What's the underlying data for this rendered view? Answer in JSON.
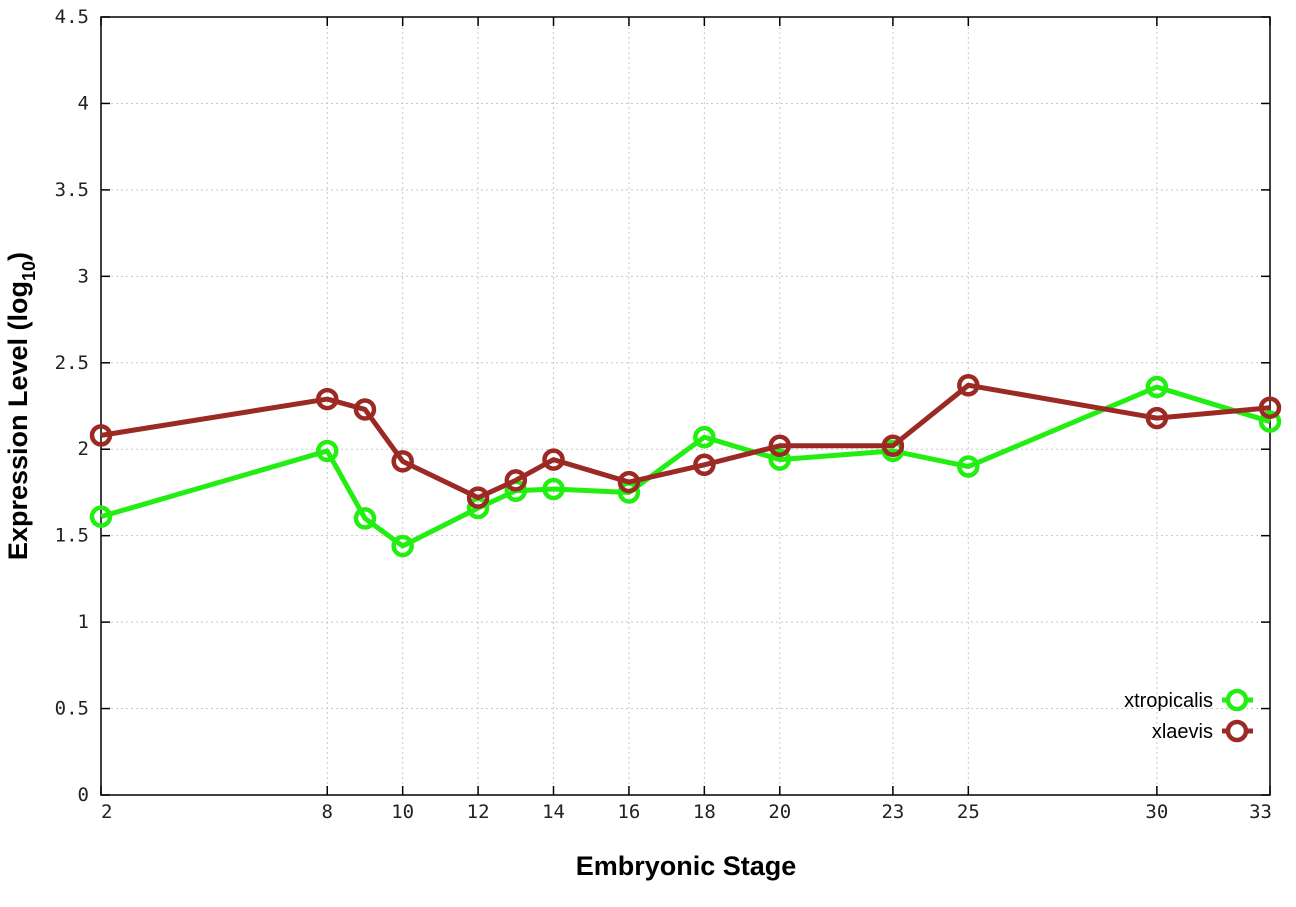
{
  "chart_data": {
    "type": "line",
    "title": "",
    "xlabel": "Embryonic Stage",
    "ylabel": "Expression Level (log",
    "ylabel_sub": "10",
    "ylabel_close": ")",
    "x_ticks": [
      "2",
      "8",
      "10",
      "12",
      "14",
      "16",
      "18",
      "20",
      "23",
      "25",
      "30",
      "33"
    ],
    "y_ticks": [
      "0",
      "0.5",
      "1",
      "1.5",
      "2",
      "2.5",
      "3",
      "3.5",
      "4",
      "4.5"
    ],
    "ylim": [
      0,
      4.5
    ],
    "grid": true,
    "legend_position": "bottom-right",
    "x": [
      2,
      8,
      9,
      10,
      12,
      13,
      14,
      16,
      18,
      20,
      23,
      25,
      30,
      33
    ],
    "series": [
      {
        "name": "xtropicalis",
        "color": "#22ee11",
        "marker": "open-circle",
        "values": [
          1.61,
          1.99,
          1.6,
          1.44,
          1.66,
          1.76,
          1.77,
          1.75,
          2.07,
          1.94,
          1.99,
          1.9,
          2.36,
          2.16
        ]
      },
      {
        "name": "xlaevis",
        "color": "#9b2a25",
        "marker": "open-circle",
        "values": [
          2.08,
          2.29,
          2.23,
          1.93,
          1.72,
          1.82,
          1.94,
          1.81,
          1.91,
          2.02,
          2.02,
          2.37,
          2.18,
          2.24
        ]
      }
    ]
  }
}
